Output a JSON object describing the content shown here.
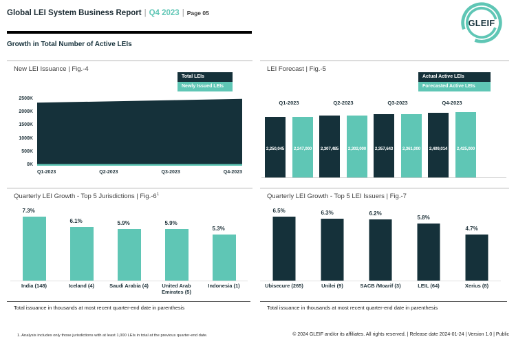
{
  "header": {
    "title": "Global LEI System Business Report",
    "separator": "|",
    "quarter": "Q4 2023",
    "page": "Page 05",
    "section_title": "Growth in Total Number of Active LEIs"
  },
  "logo": {
    "text": "GLEIF"
  },
  "colors": {
    "teal": "#5FC6B5",
    "dark": "#15313A"
  },
  "chart_data": [
    {
      "id": "fig4",
      "type": "area",
      "title": "New LEI Issuance | Fig.-4",
      "x": [
        "Q1-2023",
        "Q2-2023",
        "Q3-2023",
        "Q4-2023"
      ],
      "ylim": [
        0,
        2500000
      ],
      "yticks": [
        {
          "label": "2500K",
          "value": 2500000
        },
        {
          "label": "2000K",
          "value": 2000000
        },
        {
          "label": "1500K",
          "value": 1500000
        },
        {
          "label": "1000K",
          "value": 1000000
        },
        {
          "label": "500K",
          "value": 500000
        },
        {
          "label": "0K",
          "value": 0
        }
      ],
      "series": [
        {
          "name": "Total LEIs",
          "color": "#15313A",
          "values": [
            2390000,
            2435000,
            2485000,
            2530000
          ]
        },
        {
          "name": "Newly Issued LEIs",
          "color": "#5FC6B5",
          "values": [
            65000,
            65000,
            65000,
            65000
          ]
        }
      ],
      "legend_position": "top-right",
      "grid": false
    },
    {
      "id": "fig5",
      "type": "bar",
      "title": "LEI Forecast | Fig.-5",
      "categories": [
        "Q1-2023",
        "Q2-2023",
        "Q3-2023",
        "Q4-2023"
      ],
      "series": [
        {
          "name": "Actual Active LEIs",
          "color": "#15313A",
          "values": [
            2250045,
            2307485,
            2357643,
            2409014
          ],
          "labels": [
            "2,250,045",
            "2,307,485",
            "2,357,643",
            "2,409,014"
          ]
        },
        {
          "name": "Forecasted Active LEIs",
          "color": "#5FC6B5",
          "values": [
            2247000,
            2302000,
            2361000,
            2425000
          ],
          "labels": [
            "2,247,000",
            "2,302,000",
            "2,361,000",
            "2,425,000"
          ]
        }
      ],
      "legend_position": "top-right",
      "grid": false
    },
    {
      "id": "fig6",
      "type": "bar",
      "title": "Quarterly LEI Growth - Top 5 Jurisdictions | Fig.-6",
      "title_superscript": "1",
      "categories": [
        "India (148)",
        "Iceland (4)",
        "Saudi Arabia (4)",
        "United Arab Emirates (5)",
        "Indonesia (1)"
      ],
      "values": [
        7.3,
        6.1,
        5.9,
        5.9,
        5.3
      ],
      "labels": [
        "7.3%",
        "6.1%",
        "5.9%",
        "5.9%",
        "5.3%"
      ],
      "bar_color": "#5FC6B5",
      "note": "Total issuance in thousands at most recent quarter-end date in parenthesis",
      "grid": false
    },
    {
      "id": "fig7",
      "type": "bar",
      "title": "Quarterly LEI Growth - Top 5 LEI Issuers | Fig.-7",
      "categories": [
        "Ubisecure (265)",
        "Unilei (9)",
        "SACB /Moarif (3)",
        "LEIL (64)",
        "Xerius (8)"
      ],
      "values": [
        6.5,
        6.3,
        6.2,
        5.8,
        4.7
      ],
      "labels": [
        "6.5%",
        "6.3%",
        "6.2%",
        "5.8%",
        "4.7%"
      ],
      "bar_color": "#15313A",
      "note": "Total issuance in thousands at most recent quarter-end date in parenthesis",
      "grid": false
    }
  ],
  "footer": {
    "footnote": "1. Analysis includes only those jurisdictions with at least 1,000 LEIs in total at the previous quarter-end date.",
    "copyright": "© 2024 GLEIF and/or its affiliates. All rights reserved. | Release date 2024-01-24 | Version 1.0 | Public"
  }
}
